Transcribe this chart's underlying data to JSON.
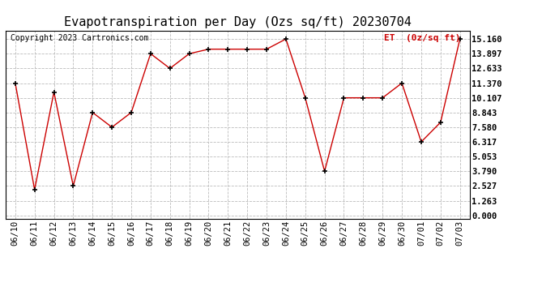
{
  "title": "Evapotranspiration per Day (Ozs sq/ft) 20230704",
  "copyright": "Copyright 2023 Cartronics.com",
  "legend_label": "ET  (0z/sq ft)",
  "dates": [
    "06/10",
    "06/11",
    "06/12",
    "06/13",
    "06/14",
    "06/15",
    "06/16",
    "06/17",
    "06/18",
    "06/19",
    "06/20",
    "06/21",
    "06/22",
    "06/23",
    "06/24",
    "06/25",
    "06/26",
    "06/27",
    "06/28",
    "06/29",
    "06/30",
    "07/01",
    "07/02",
    "07/03"
  ],
  "values": [
    11.37,
    2.21,
    10.6,
    2.527,
    8.843,
    7.58,
    8.843,
    13.897,
    12.633,
    13.897,
    14.287,
    14.287,
    14.287,
    14.287,
    15.16,
    10.107,
    3.79,
    10.107,
    10.107,
    10.107,
    11.37,
    6.317,
    8.0,
    15.16
  ],
  "line_color": "#cc0000",
  "marker": "+",
  "background_color": "#ffffff",
  "grid_color": "#bbbbbb",
  "yticks": [
    0.0,
    1.263,
    2.527,
    3.79,
    5.053,
    6.317,
    7.58,
    8.843,
    10.107,
    11.37,
    12.633,
    13.897,
    15.16
  ],
  "ylim": [
    -0.3,
    15.9
  ],
  "title_fontsize": 11,
  "tick_fontsize": 7.5,
  "legend_fontsize": 8,
  "copyright_fontsize": 7
}
